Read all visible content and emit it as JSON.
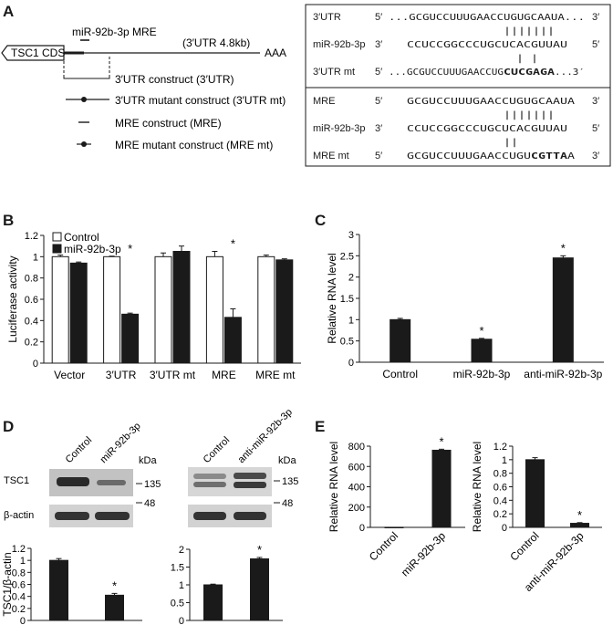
{
  "panel_labels": [
    "A",
    "B",
    "C",
    "D",
    "E"
  ],
  "panel_a": {
    "schematic": {
      "cds_label": "TSC1 CDS",
      "mre_label": "miR-92b-3p MRE",
      "utr_length_label": "(3′UTR 4.8kb)",
      "polya_label": "AAA",
      "constructs": [
        "3′UTR construct (3′UTR)",
        "3′UTR mutant construct (3′UTR mt)",
        "MRE construct (MRE)",
        "MRE mutant construct (MRE mt)"
      ]
    },
    "alignments": [
      {
        "rows": [
          {
            "label": "3′UTR",
            "left_end": "5′",
            "seq": "...GCGUCCUUUGAACCUGUGCAAUA...",
            "right_end": "3′"
          },
          {
            "label": "",
            "left_end": "",
            "seq": "|||||||",
            "right_end": ""
          },
          {
            "label": "miR-92b-3p",
            "left_end": "3′",
            "seq": "CCUCCGGCCCUGCUCACGUUAU",
            "right_end": "5′"
          },
          {
            "label": "",
            "left_end": "",
            "seq": "| |",
            "right_end": ""
          },
          {
            "label": "3′UTR mt",
            "left_end": "5′",
            "seq_parts": [
              "...GCGUCCUUUGAACCUG",
              "CUCGAGA",
              "...3′"
            ],
            "right_end": ""
          }
        ]
      },
      {
        "rows": [
          {
            "label": "MRE",
            "left_end": "5′",
            "seq": "GCGUCCUUUGAACCUGUGCAAUA",
            "right_end": "3′"
          },
          {
            "label": "",
            "left_end": "",
            "seq": "|||||||",
            "right_end": ""
          },
          {
            "label": "miR-92b-3p",
            "left_end": "3′",
            "seq": "CCUCCGGCCCUGCUCACGUUAU",
            "right_end": "5′"
          },
          {
            "label": "",
            "left_end": "",
            "seq": "||",
            "right_end": ""
          },
          {
            "label": "MRE mt",
            "left_end": "5′",
            "seq_parts": [
              "GCGUCCUUUGAACCUGU",
              "CGTTA",
              "A"
            ],
            "right_end": "3′"
          }
        ]
      }
    ]
  },
  "panel_d": {
    "blot_left_lanes": [
      "Control",
      "miR-92b-3p"
    ],
    "blot_right_lanes": [
      "Control",
      "anti-miR-92b-3p"
    ],
    "protein_labels": [
      "TSC1",
      "β-actin"
    ],
    "kda_label": "kDa",
    "markers": [
      "135",
      "48"
    ]
  },
  "chart_data": [
    {
      "panel": "B",
      "type": "bar",
      "categories": [
        "Vector",
        "3′UTR",
        "3′UTR mt",
        "MRE",
        "MRE mt"
      ],
      "series": [
        {
          "name": "Control",
          "values": [
            1.0,
            1.0,
            1.0,
            1.0,
            1.0
          ],
          "errors": [
            0.015,
            0.005,
            0.035,
            0.05,
            0.015
          ],
          "color": "#ffffff"
        },
        {
          "name": "miR-92b-3p",
          "values": [
            0.94,
            0.46,
            1.05,
            0.43,
            0.97
          ],
          "errors": [
            0.01,
            0.01,
            0.05,
            0.08,
            0.01
          ],
          "color": "#1a1a1a"
        }
      ],
      "ylabel": "Luciferase activity",
      "ylim": [
        0,
        1.2
      ],
      "yticks": [
        "0",
        "0.2",
        "0.4",
        "0.6",
        "0.8",
        "1",
        "1.2"
      ],
      "significance": [
        {
          "category": "3′UTR",
          "label": "*"
        },
        {
          "category": "MRE",
          "label": "*"
        }
      ],
      "legend": "top-left",
      "grid": false
    },
    {
      "panel": "C",
      "type": "bar",
      "categories": [
        "Control",
        "miR-92b-3p",
        "anti-miR-92b-3p"
      ],
      "values": [
        1.0,
        0.54,
        2.45
      ],
      "errors": [
        0.03,
        0.02,
        0.05
      ],
      "ylabel": "Relative RNA level",
      "ylim": [
        0,
        3
      ],
      "yticks": [
        "0",
        "0.5",
        "1",
        "1.5",
        "2",
        "2.5",
        "3"
      ],
      "significance": [
        {
          "category": "miR-92b-3p",
          "label": "*"
        },
        {
          "category": "anti-miR-92b-3p",
          "label": "*"
        }
      ],
      "grid": false
    },
    {
      "panel": "D-left",
      "type": "bar",
      "categories": [
        "Control",
        "miR-92b-3p"
      ],
      "values": [
        1.0,
        0.42
      ],
      "errors": [
        0.03,
        0.03
      ],
      "ylabel": "TSC1/β-actin",
      "ylim": [
        0,
        1.2
      ],
      "yticks": [
        "0",
        "0.2",
        "0.4",
        "0.6",
        "0.8",
        "1",
        "1.2"
      ],
      "significance": [
        {
          "category": "miR-92b-3p",
          "label": "*"
        }
      ],
      "grid": false
    },
    {
      "panel": "D-right",
      "type": "bar",
      "categories": [
        "Control",
        "anti-miR-92b-3p"
      ],
      "values": [
        1.0,
        1.73
      ],
      "errors": [
        0.02,
        0.04
      ],
      "ylabel": "",
      "ylim": [
        0,
        2
      ],
      "yticks": [
        "0",
        "0.5",
        "1",
        "1.5",
        "2"
      ],
      "significance": [
        {
          "category": "anti-miR-92b-3p",
          "label": "*"
        }
      ],
      "grid": false
    },
    {
      "panel": "E-left",
      "type": "bar",
      "categories": [
        "Control",
        "miR-92b-3p"
      ],
      "values": [
        1,
        760
      ],
      "errors": [
        0,
        10
      ],
      "ylabel": "Relative RNA level",
      "ylim": [
        0,
        800
      ],
      "yticks": [
        "0",
        "200",
        "400",
        "600",
        "800"
      ],
      "significance": [
        {
          "category": "miR-92b-3p",
          "label": "*"
        }
      ],
      "grid": false
    },
    {
      "panel": "E-right",
      "type": "bar",
      "categories": [
        "Control",
        "anti-miR-92b-3p"
      ],
      "values": [
        1.0,
        0.06
      ],
      "errors": [
        0.03,
        0.01
      ],
      "ylabel": "Relative RNA level",
      "ylim": [
        0,
        1.2
      ],
      "yticks": [
        "0",
        "0.2",
        "0.4",
        "0.6",
        "0.8",
        "1",
        "1.2"
      ],
      "significance": [
        {
          "category": "anti-miR-92b-3p",
          "label": "*"
        }
      ],
      "grid": false
    }
  ]
}
